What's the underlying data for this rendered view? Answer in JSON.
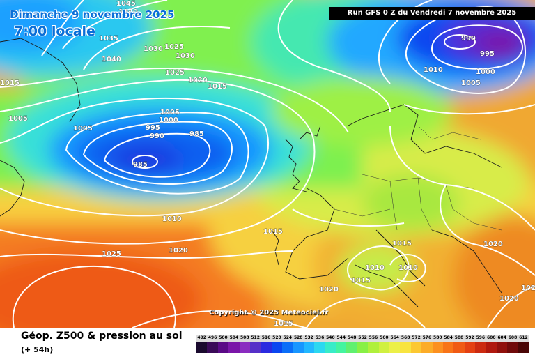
{
  "map": {
    "title_date": "Dimanche 9 novembre 2025",
    "title_time": "7:00 locale",
    "run_info": "Run GFS 0 Z du Vendredi 7 novembre 2025",
    "copyright": "Copyright © 2025 Meteociel.fr",
    "footer_title": "Géop. Z500 & pression au sol",
    "footer_subtitle": "(+ 54h)",
    "pressure_centers": [
      {
        "type": "low",
        "value": "985",
        "description": "depression west of Ireland"
      },
      {
        "type": "low",
        "value": "990",
        "description": "depression over Scandinavia"
      },
      {
        "type": "high",
        "value": "1025",
        "description": "anticyclone near the Azores"
      }
    ],
    "isobar_labels": [
      "1045",
      "1040",
      "1035",
      "1030",
      "1025",
      "1030",
      "1040",
      "1015",
      "1025",
      "1020",
      "1015",
      "1005",
      "1005",
      "1000",
      "995",
      "990",
      "985",
      "985",
      "1005",
      "1010",
      "1015",
      "1020",
      "1025",
      "1020",
      "1015",
      "1010",
      "1010",
      "1015",
      "1020",
      "1015",
      "1020",
      "1020",
      "990",
      "995",
      "1010",
      "1000",
      "1005"
    ],
    "legend": {
      "values": [
        "492",
        "496",
        "500",
        "504",
        "508",
        "512",
        "516",
        "520",
        "524",
        "528",
        "532",
        "536",
        "540",
        "544",
        "548",
        "552",
        "556",
        "560",
        "564",
        "568",
        "572",
        "576",
        "580",
        "584",
        "588",
        "592",
        "596",
        "600",
        "604",
        "608",
        "612"
      ],
      "colors": [
        "#1a0a2e",
        "#3a0a58",
        "#5a0a86",
        "#7a16a8",
        "#8a2cc0",
        "#5630c8",
        "#2a2ae0",
        "#0a46f0",
        "#0a6ef8",
        "#1896ff",
        "#22b8ff",
        "#2cd8f0",
        "#38ecc8",
        "#44f4a0",
        "#60f070",
        "#88f046",
        "#b0f03c",
        "#d0f040",
        "#ecf048",
        "#f8e440",
        "#fcc832",
        "#fcac28",
        "#fc9020",
        "#f87418",
        "#f05a14",
        "#e44012",
        "#cc2a10",
        "#b0180e",
        "#90100c",
        "#700a0a",
        "#4a0606"
      ]
    }
  }
}
